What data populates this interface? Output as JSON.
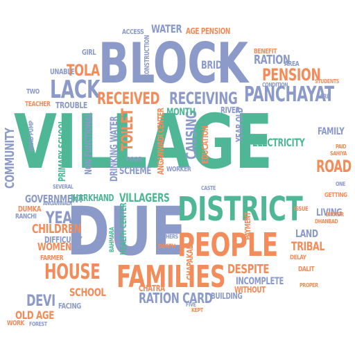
{
  "colors": {
    "green": "#4fb795",
    "blue": "#8b9ac9",
    "orange": "#f28c5a"
  },
  "words": [
    {
      "id": "village",
      "text": "VILLAGE",
      "color": "green"
    },
    {
      "id": "block",
      "text": "BLOCK",
      "color": "blue"
    },
    {
      "id": "due",
      "text": "DUE",
      "color": "blue"
    },
    {
      "id": "district",
      "text": "DISTRICT",
      "color": "green"
    },
    {
      "id": "people",
      "text": "PEOPLE",
      "color": "orange"
    },
    {
      "id": "families",
      "text": "FAMILIES",
      "color": "orange"
    },
    {
      "id": "house",
      "text": "HOUSE",
      "color": "orange"
    },
    {
      "id": "lack",
      "text": "LACK",
      "color": "blue"
    },
    {
      "id": "received",
      "text": "RECEIVED",
      "color": "orange"
    },
    {
      "id": "receiving",
      "text": "RECEIVING",
      "color": "blue"
    },
    {
      "id": "panchayat",
      "text": "PANCHAYAT",
      "color": "blue"
    },
    {
      "id": "pension",
      "text": "PENSION",
      "color": "orange"
    },
    {
      "id": "ration",
      "text": "RATION",
      "color": "blue"
    },
    {
      "id": "water",
      "text": "WATER",
      "color": "blue"
    },
    {
      "id": "access",
      "text": "ACCESS",
      "color": "blue"
    },
    {
      "id": "age-pension",
      "text": "AGE PENSION",
      "color": "orange"
    },
    {
      "id": "tola",
      "text": "TOLA",
      "color": "orange"
    },
    {
      "id": "road",
      "text": "ROAD",
      "color": "orange"
    },
    {
      "id": "family",
      "text": "FAMILY",
      "color": "blue"
    },
    {
      "id": "electricity",
      "text": "ELECTRICITY",
      "color": "green"
    },
    {
      "id": "government",
      "text": "GOVERNMENT",
      "color": "blue"
    },
    {
      "id": "jharkhand",
      "text": "JHARKHAND",
      "color": "green"
    },
    {
      "id": "villagers",
      "text": "VILLAGERS",
      "color": "green"
    },
    {
      "id": "year",
      "text": "YEAR",
      "color": "blue"
    },
    {
      "id": "children",
      "text": "CHILDREN",
      "color": "orange"
    },
    {
      "id": "women",
      "text": "WOMEN",
      "color": "orange"
    },
    {
      "id": "devi",
      "text": "DEVI",
      "color": "blue"
    },
    {
      "id": "old-age",
      "text": "OLD AGE",
      "color": "orange"
    },
    {
      "id": "school",
      "text": "SCHOOL",
      "color": "orange"
    },
    {
      "id": "ration-card",
      "text": "RATION CARD",
      "color": "blue"
    },
    {
      "id": "despite",
      "text": "DESPITE",
      "color": "orange"
    },
    {
      "id": "tribal",
      "text": "TRIBAL",
      "color": "orange"
    },
    {
      "id": "living",
      "text": "LIVING",
      "color": "blue"
    },
    {
      "id": "land",
      "text": "LAND",
      "color": "blue"
    },
    {
      "id": "community",
      "text": "COMMUNITY",
      "color": "blue"
    },
    {
      "id": "toilet",
      "text": "TOILET",
      "color": "orange"
    },
    {
      "id": "causing",
      "text": "CAUSING",
      "color": "blue"
    },
    {
      "id": "scheme",
      "text": "SCHEME",
      "color": "blue"
    },
    {
      "id": "month",
      "text": "MONTH",
      "color": "green"
    },
    {
      "id": "bridge",
      "text": "BRIDGE",
      "color": "blue"
    },
    {
      "id": "trouble",
      "text": "TROUBLE",
      "color": "blue"
    },
    {
      "id": "difficulty",
      "text": "DIFFICULTY",
      "color": "blue"
    },
    {
      "id": "primary-school",
      "text": "PRIMARY SCHOOL",
      "color": "green"
    },
    {
      "id": "non-functional",
      "text": "NON FUNCTIONAL",
      "color": "blue"
    },
    {
      "id": "drinking-water",
      "text": "DRINKING WATER",
      "color": "blue"
    },
    {
      "id": "education",
      "text": "EDUCATION",
      "color": "orange"
    },
    {
      "id": "river",
      "text": "RIVER",
      "color": "blue"
    },
    {
      "id": "year-old",
      "text": "YEAR OLD",
      "color": "blue"
    },
    {
      "id": "anganwadi-center",
      "text": "ANGANWADI CENTER",
      "color": "orange"
    },
    {
      "id": "health-center",
      "text": "HEALTH CENTER",
      "color": "green"
    },
    {
      "id": "incomplete",
      "text": "INCOMPLETE",
      "color": "blue"
    },
    {
      "id": "without",
      "text": "WITHOUT",
      "color": "orange"
    },
    {
      "id": "chatra",
      "text": "CHATRA",
      "color": "orange"
    },
    {
      "id": "chapakal",
      "text": "CHAPAKAL",
      "color": "orange"
    },
    {
      "id": "building",
      "text": "BUILDING",
      "color": "blue"
    },
    {
      "id": "facing",
      "text": "FACING",
      "color": "blue"
    },
    {
      "id": "dumka",
      "text": "DUMKA",
      "color": "orange"
    },
    {
      "id": "ranchi",
      "text": "RANCHI",
      "color": "blue"
    },
    {
      "id": "payment",
      "text": "PAYMENT",
      "color": "orange"
    },
    {
      "id": "girl",
      "text": "GIRL",
      "color": "blue"
    },
    {
      "id": "unable",
      "text": "UNABLE",
      "color": "blue"
    },
    {
      "id": "teacher",
      "text": "TEACHER",
      "color": "orange"
    },
    {
      "id": "benefit",
      "text": "BENEFIT",
      "color": "orange"
    },
    {
      "id": "area",
      "text": "AREA",
      "color": "blue"
    },
    {
      "id": "construction",
      "text": "CONSTRUCTION",
      "color": "blue"
    },
    {
      "id": "poor",
      "text": "POOR",
      "color": "blue"
    },
    {
      "id": "worker",
      "text": "WORKER",
      "color": "blue"
    },
    {
      "id": "work",
      "text": "WORK",
      "color": "orange"
    },
    {
      "id": "two",
      "text": "TWO",
      "color": "blue"
    },
    {
      "id": "dalit",
      "text": "DALIT",
      "color": "orange"
    },
    {
      "id": "bahmara",
      "text": "BAHMARA",
      "color": "green"
    },
    {
      "id": "issue",
      "text": "ISSUE",
      "color": "orange"
    },
    {
      "id": "caste",
      "text": "CASTE",
      "color": "blue"
    },
    {
      "id": "hand-pump",
      "text": "HAND PUMP",
      "color": "blue"
    },
    {
      "id": "card",
      "text": "CARD",
      "color": "blue"
    },
    {
      "id": "condition",
      "text": "CONDITION",
      "color": "blue"
    },
    {
      "id": "getting",
      "text": "GETTING",
      "color": "orange"
    },
    {
      "id": "death",
      "text": "DEATH",
      "color": "orange"
    },
    {
      "id": "farmer",
      "text": "FARMER",
      "color": "orange"
    },
    {
      "id": "dhanbad",
      "text": "DHANBAD",
      "color": "orange"
    },
    {
      "id": "students",
      "text": "STUDENTS",
      "color": "orange"
    },
    {
      "id": "anganwadi",
      "text": "ANGANWADI",
      "color": "blue"
    },
    {
      "id": "several",
      "text": "SEVERAL",
      "color": "blue"
    },
    {
      "id": "others",
      "text": "OTHERS",
      "color": "blue"
    },
    {
      "id": "delay",
      "text": "DELAY",
      "color": "orange"
    },
    {
      "id": "kept",
      "text": "KEPT",
      "color": "orange"
    },
    {
      "id": "five",
      "text": "FIVE",
      "color": "blue"
    },
    {
      "id": "forest",
      "text": "FOREST",
      "color": "blue"
    },
    {
      "id": "proper",
      "text": "PROPER",
      "color": "orange"
    },
    {
      "id": "one",
      "text": "ONE",
      "color": "blue"
    },
    {
      "id": "samiya",
      "text": "SAHIYA",
      "color": "orange"
    },
    {
      "id": "birhor",
      "text": "BIRHOR",
      "color": "orange"
    },
    {
      "id": "paid",
      "text": "PAID",
      "color": "orange"
    }
  ]
}
